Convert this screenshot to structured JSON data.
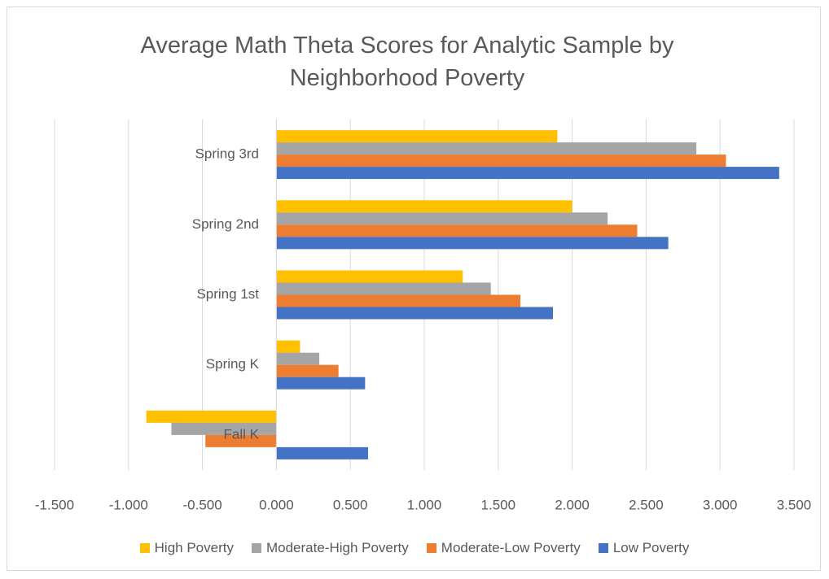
{
  "chart_data": {
    "type": "hbar",
    "title": "Average Math Theta Scores for Analytic Sample by Neighborhood Poverty",
    "categories": [
      "Fall K",
      "Spring K",
      "Spring 1st",
      "Spring 2nd",
      "Spring 3rd"
    ],
    "series": [
      {
        "name": "High Poverty",
        "color": "#ffc000",
        "values": [
          -0.88,
          0.16,
          1.26,
          2.0,
          1.9
        ]
      },
      {
        "name": "Moderate-High Poverty",
        "color": "#a5a5a5",
        "values": [
          -0.71,
          0.29,
          1.45,
          2.24,
          2.84
        ]
      },
      {
        "name": "Moderate-Low Poverty",
        "color": "#ed7d31",
        "values": [
          -0.48,
          0.42,
          1.65,
          2.44,
          3.04
        ]
      },
      {
        "name": "Low Poverty",
        "color": "#4472c4",
        "values": [
          0.62,
          0.6,
          1.87,
          2.65,
          3.4
        ]
      }
    ],
    "xlim": [
      -1.5,
      3.5
    ],
    "xticks": [
      {
        "value": -1.5,
        "label": "-1.500"
      },
      {
        "value": -1.0,
        "label": "-1.000"
      },
      {
        "value": -0.5,
        "label": "-0.500"
      },
      {
        "value": 0,
        "label": "0.000"
      },
      {
        "value": 0.5,
        "label": "0.500"
      },
      {
        "value": 1.0,
        "label": "1.000"
      },
      {
        "value": 1.5,
        "label": "1.500"
      },
      {
        "value": 2.0,
        "label": "2.000"
      },
      {
        "value": 2.5,
        "label": "2.500"
      },
      {
        "value": 3.0,
        "label": "3.000"
      },
      {
        "value": 3.5,
        "label": "3.500"
      }
    ],
    "grid": true,
    "legend": "bottom"
  }
}
